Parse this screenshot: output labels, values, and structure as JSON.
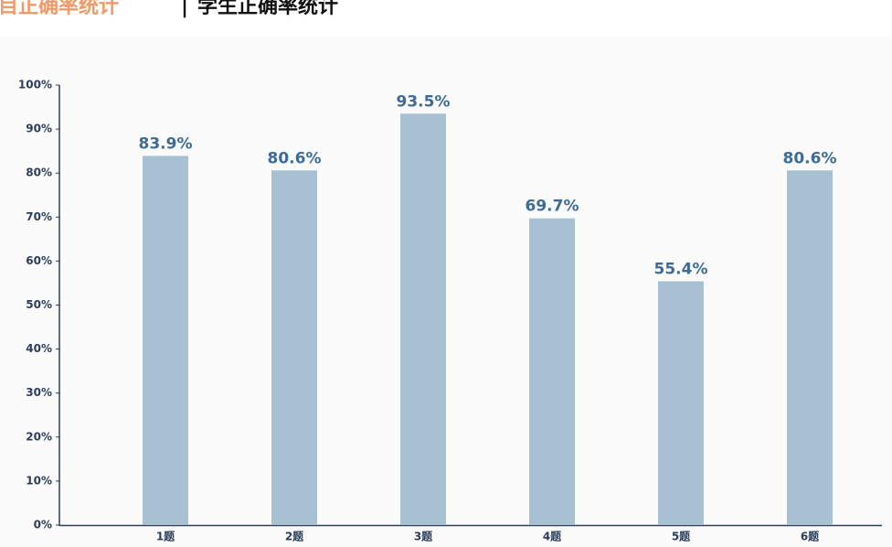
{
  "header": {
    "title_left": "目正确率统计",
    "separator": "|",
    "title_right": "学生正确率统计"
  },
  "chart_data": {
    "type": "bar",
    "categories": [
      "1题",
      "2题",
      "3题",
      "4题",
      "5题",
      "6题"
    ],
    "values": [
      83.9,
      80.6,
      93.5,
      69.7,
      55.4,
      80.6
    ],
    "value_labels": [
      "83.9%",
      "80.6%",
      "93.5%",
      "69.7%",
      "55.4%",
      "80.6%"
    ],
    "color": "#a7c1d3",
    "ylim": [
      0,
      100
    ],
    "yticks": [
      {
        "value": 0,
        "label": "0%"
      },
      {
        "value": 10,
        "label": "10%"
      },
      {
        "value": 20,
        "label": "20%"
      },
      {
        "value": 30,
        "label": "30%"
      },
      {
        "value": 40,
        "label": "40%"
      },
      {
        "value": 50,
        "label": "50%"
      },
      {
        "value": 60,
        "label": "60%"
      },
      {
        "value": 70,
        "label": "70%"
      },
      {
        "value": 80,
        "label": "80%"
      },
      {
        "value": 90,
        "label": "90%"
      },
      {
        "value": 100,
        "label": "100%"
      }
    ],
    "grid": false
  }
}
